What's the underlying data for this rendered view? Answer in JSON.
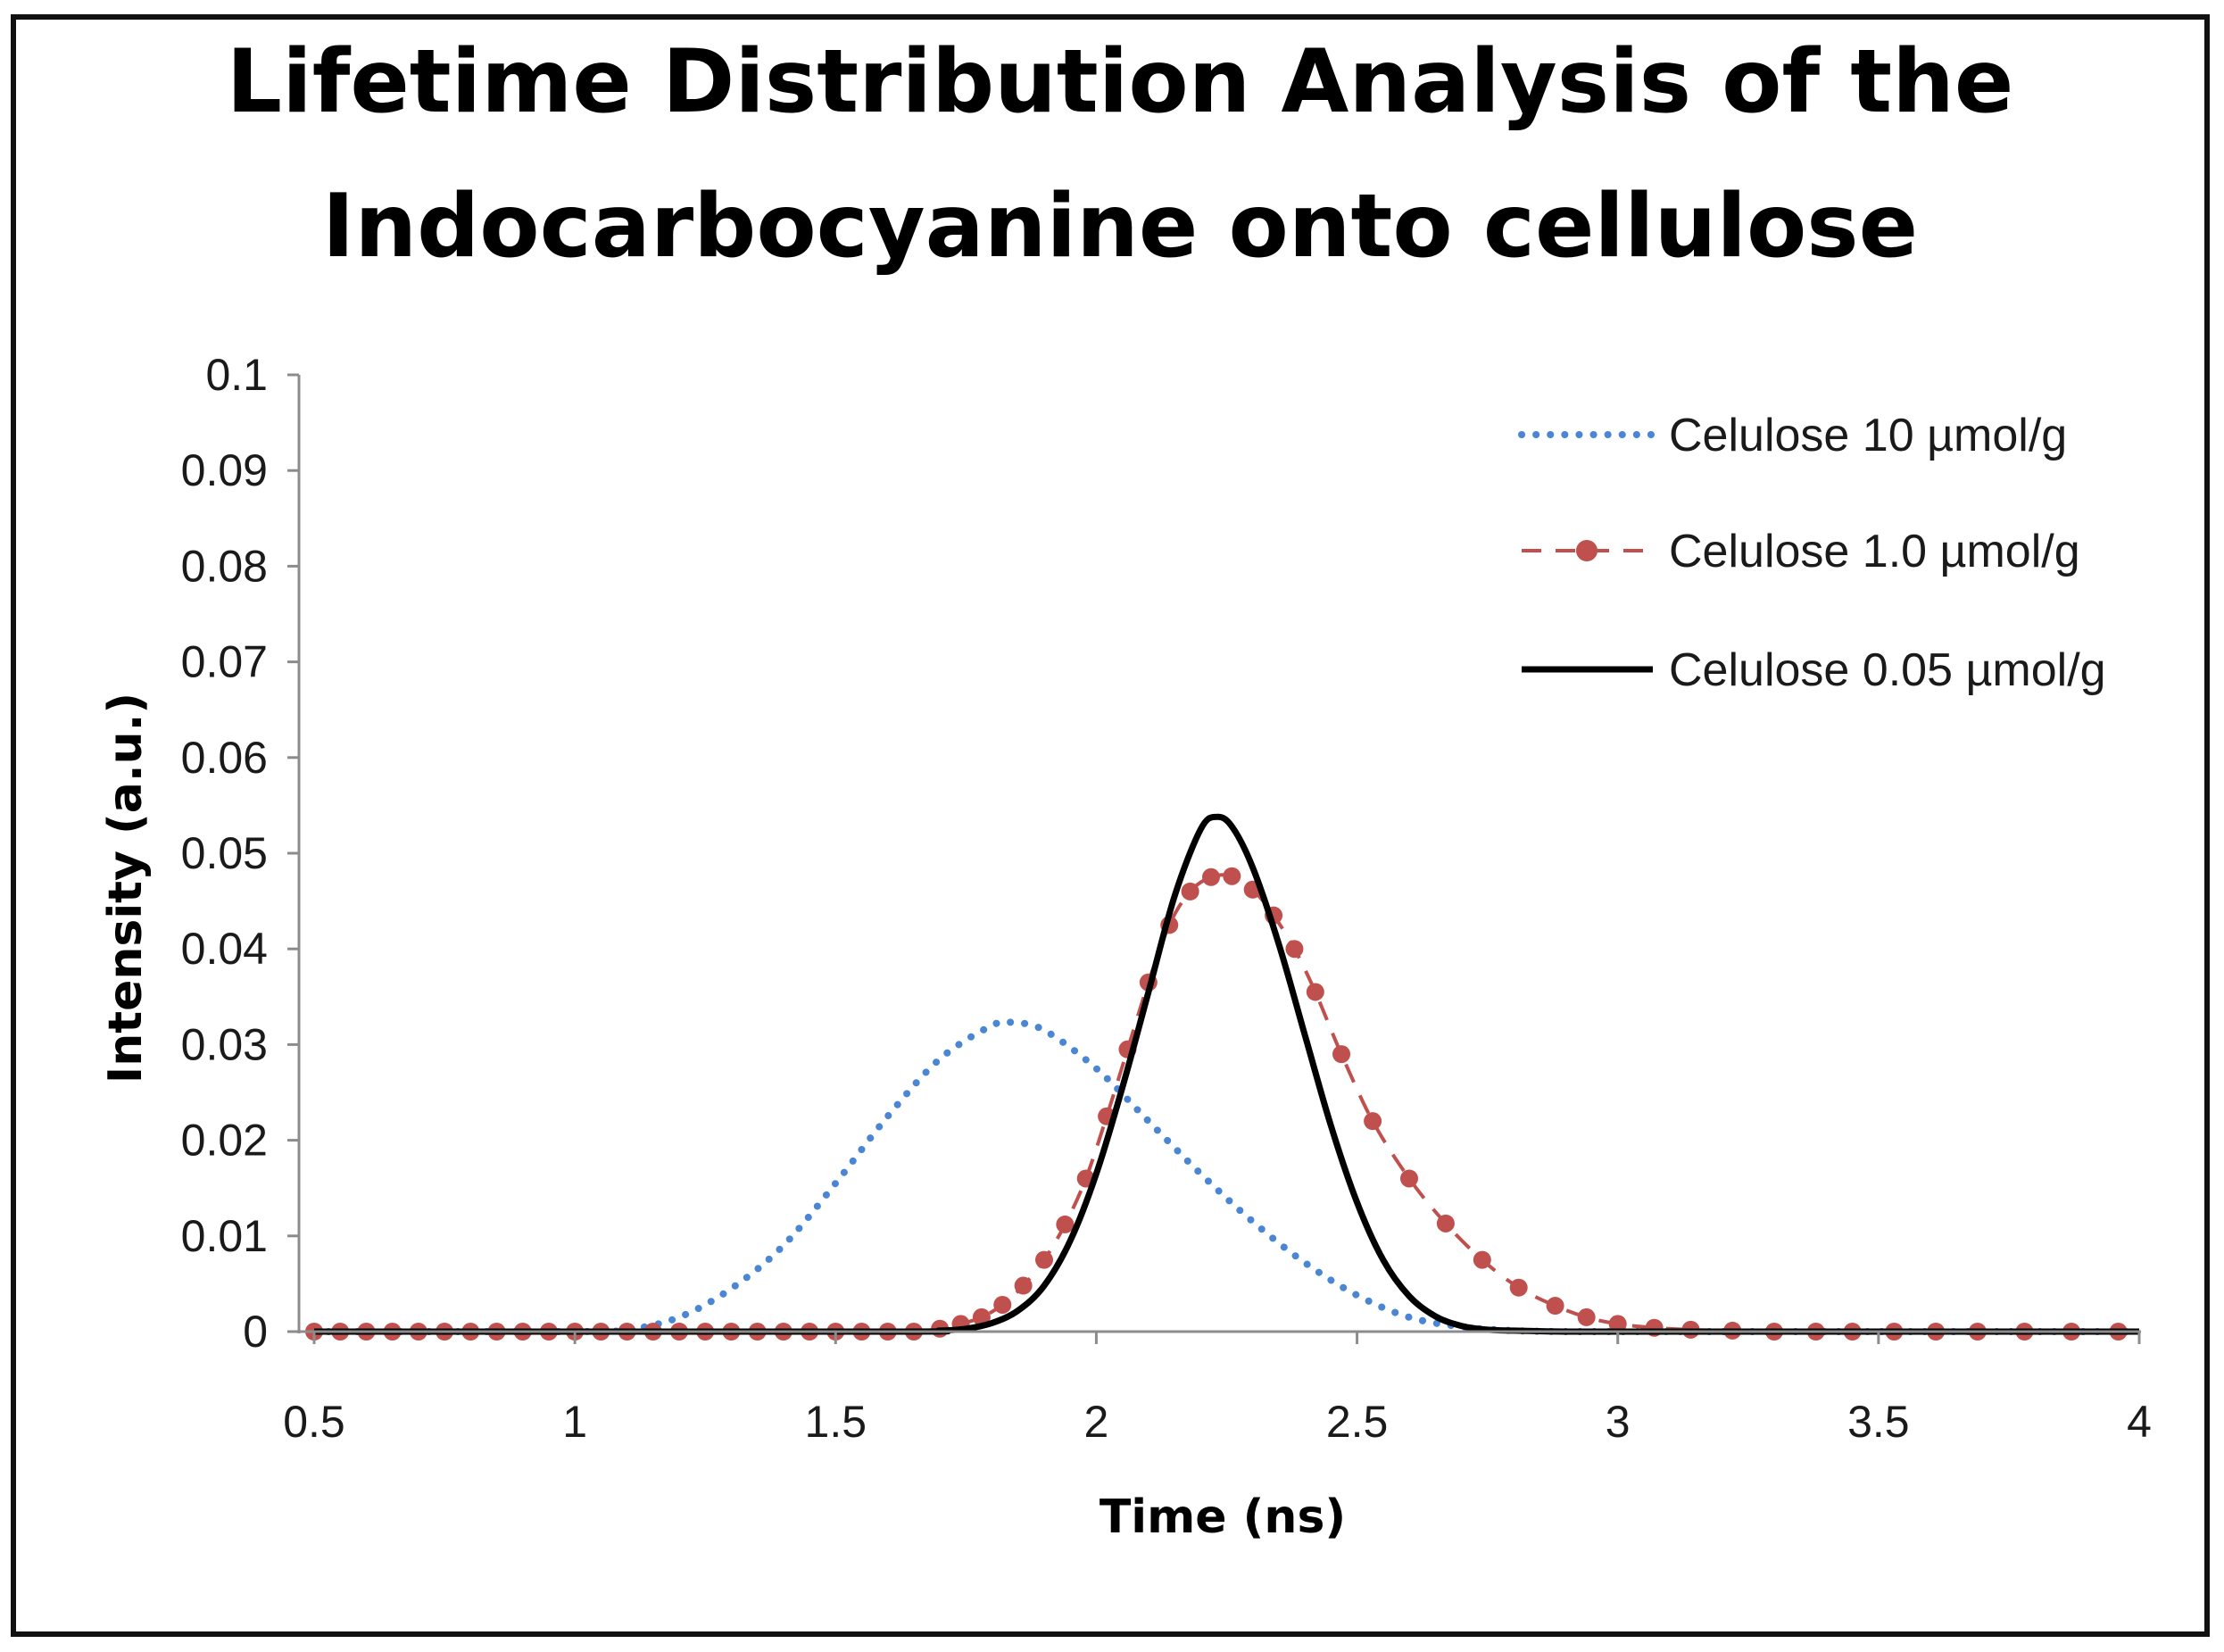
{
  "chart_data": {
    "type": "line",
    "title_lines": [
      "Lifetime Distribution Analysis of the",
      "Indocarbocyanine onto cellulose"
    ],
    "xlabel": "Time (ns)",
    "ylabel": "Intensity (a.u.)",
    "xlim": [
      0.5,
      4
    ],
    "ylim": [
      0,
      0.1
    ],
    "x_ticks": [
      "0.5",
      "1",
      "1.5",
      "2",
      "2.5",
      "3",
      "3.5",
      "4"
    ],
    "y_ticks": [
      "0",
      "0.01",
      "0.02",
      "0.03",
      "0.04",
      "0.05",
      "0.06",
      "0.07",
      "0.08",
      "0.09",
      "0.1"
    ],
    "grid": false,
    "legend_position": "top-right",
    "series": [
      {
        "name": "Celulose 10 µmol/g",
        "style": "dotted",
        "color": "#4a86d4",
        "x": [
          0.5,
          1.0,
          1.1,
          1.2,
          1.3,
          1.4,
          1.5,
          1.6,
          1.7,
          1.8,
          1.84,
          1.9,
          2.0,
          2.1,
          2.2,
          2.3,
          2.4,
          2.5,
          2.6,
          2.7,
          2.8,
          2.9,
          3.0,
          3.5,
          4.0
        ],
        "y": [
          0.0,
          0.0,
          0.0002,
          0.0015,
          0.0045,
          0.009,
          0.0155,
          0.0225,
          0.0285,
          0.032,
          0.0323,
          0.0315,
          0.0275,
          0.022,
          0.0165,
          0.0115,
          0.0072,
          0.0038,
          0.0015,
          0.0005,
          0.0001,
          0.0,
          0.0,
          0.0,
          0.0
        ]
      },
      {
        "name": "Celulose 1.0 µmol/g",
        "style": "dashed-markers",
        "color": "#c0504d",
        "x": [
          0.5,
          0.55,
          0.6,
          0.65,
          0.7,
          0.75,
          0.8,
          0.85,
          0.9,
          0.95,
          1.0,
          1.05,
          1.1,
          1.15,
          1.2,
          1.25,
          1.3,
          1.35,
          1.4,
          1.45,
          1.5,
          1.55,
          1.6,
          1.65,
          1.7,
          1.74,
          1.78,
          1.82,
          1.86,
          1.9,
          1.94,
          1.98,
          2.02,
          2.06,
          2.1,
          2.14,
          2.18,
          2.22,
          2.26,
          2.3,
          2.34,
          2.38,
          2.42,
          2.47,
          2.53,
          2.6,
          2.67,
          2.74,
          2.81,
          2.88,
          2.94,
          3.0,
          3.07,
          3.14,
          3.22,
          3.3,
          3.38,
          3.45,
          3.53,
          3.61,
          3.69,
          3.78,
          3.87,
          3.96
        ],
        "y": [
          0.0,
          0.0,
          0.0,
          0.0,
          0.0,
          0.0,
          0.0,
          0.0,
          0.0,
          0.0,
          0.0,
          0.0,
          0.0,
          0.0,
          0.0,
          0.0,
          0.0,
          0.0,
          0.0,
          0.0,
          0.0,
          0.0,
          0.0,
          0.0,
          0.0003,
          0.0008,
          0.0015,
          0.0028,
          0.0048,
          0.0075,
          0.0112,
          0.016,
          0.0225,
          0.0295,
          0.0365,
          0.0425,
          0.046,
          0.0475,
          0.0476,
          0.0462,
          0.0435,
          0.04,
          0.0355,
          0.029,
          0.022,
          0.016,
          0.0113,
          0.0075,
          0.0046,
          0.0027,
          0.0015,
          0.0008,
          0.0004,
          0.0002,
          0.0001,
          0.0,
          0.0,
          0.0,
          0.0,
          0.0,
          0.0,
          0.0,
          0.0,
          0.0
        ]
      },
      {
        "name": "Celulose 0.05 µmol/g",
        "style": "solid",
        "color": "#000000",
        "x": [
          0.5,
          1.6,
          1.7,
          1.75,
          1.8,
          1.85,
          1.9,
          1.95,
          2.0,
          2.05,
          2.1,
          2.15,
          2.2,
          2.23,
          2.26,
          2.3,
          2.35,
          2.4,
          2.45,
          2.5,
          2.55,
          2.6,
          2.65,
          2.7,
          2.75,
          2.8,
          2.9,
          3.0,
          3.5,
          4.0
        ],
        "y": [
          0.0,
          0.0,
          0.0001,
          0.0003,
          0.0009,
          0.0022,
          0.0048,
          0.0095,
          0.0165,
          0.0255,
          0.0355,
          0.0455,
          0.0525,
          0.0538,
          0.0528,
          0.0485,
          0.0405,
          0.031,
          0.0215,
          0.0135,
          0.0075,
          0.0037,
          0.0016,
          0.0006,
          0.0002,
          0.0001,
          0.0,
          0.0,
          0.0,
          0.0
        ]
      }
    ]
  }
}
